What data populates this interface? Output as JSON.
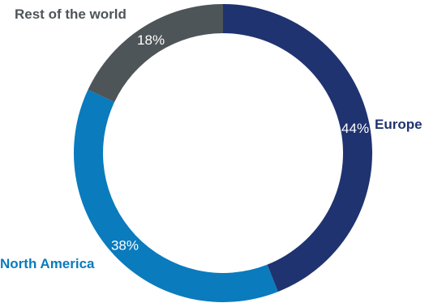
{
  "chart_data": {
    "type": "pie",
    "variant": "donut",
    "categories": [
      "Europe",
      "North America",
      "Rest of the world"
    ],
    "values": [
      44,
      38,
      18
    ],
    "value_labels": [
      "44%",
      "38%",
      "18%"
    ],
    "colors": [
      "#1f3370",
      "#0a7bbd",
      "#4e5558"
    ],
    "label_colors": [
      "#1f3370",
      "#0a7bbd",
      "#4e5558"
    ],
    "start_angle_deg": 0,
    "direction": "clockwise",
    "legend": "none"
  }
}
